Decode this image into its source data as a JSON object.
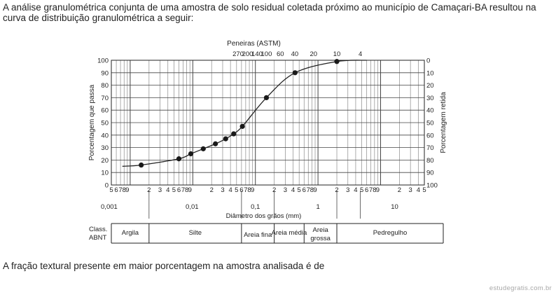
{
  "text": {
    "intro": "A análise granulométrica conjunta de uma amostra de solo residual coletada próximo ao município de Camaçari-BA resultou na curva de distribuição granulométrica a seguir:",
    "question": "A fração textural presente em maior porcentagem na amostra analisada é de",
    "watermark": "estudegratis.com.br"
  },
  "chart_data": {
    "type": "line",
    "title": "Peneiras (ASTM)",
    "sieve_labels": [
      "270",
      "200",
      "140",
      "100",
      "60",
      "40",
      "20",
      "10",
      "4"
    ],
    "xlabel": "Diâmetro dos grãos (mm)",
    "ylabel_left": "Porcentagem que passa",
    "ylabel_right": "Porcentagem retida",
    "x_scale": "log",
    "xlim": [
      0.0005,
      50
    ],
    "ylim": [
      0,
      100
    ],
    "y_ticks_left": [
      "0",
      "10",
      "20",
      "30",
      "40",
      "50",
      "60",
      "70",
      "80",
      "90",
      "100"
    ],
    "y_ticks_right": [
      "100",
      "90",
      "80",
      "70",
      "60",
      "50",
      "40",
      "30",
      "20",
      "10",
      "0"
    ],
    "decade_labels": [
      "0,001",
      "0,01",
      "0,1",
      "1",
      "10"
    ],
    "minor_tick_labels": [
      "5",
      "6",
      "7",
      "8",
      "9",
      "2",
      "3",
      "4",
      "5",
      "6",
      "7",
      "8",
      "9",
      "2",
      "3",
      "4",
      "5",
      "6",
      "7",
      "8",
      "9",
      "2",
      "3",
      "4",
      "5",
      "6",
      "7",
      "8",
      "9",
      "2",
      "3",
      "4",
      "5",
      "6",
      "7",
      "8",
      "9",
      "2",
      "3",
      "4",
      "5"
    ],
    "series": [
      {
        "points": [
          {
            "x": 0.0015,
            "y": 16
          },
          {
            "x": 0.006,
            "y": 21
          },
          {
            "x": 0.0093,
            "y": 25
          },
          {
            "x": 0.0147,
            "y": 29
          },
          {
            "x": 0.023,
            "y": 33
          },
          {
            "x": 0.0335,
            "y": 37
          },
          {
            "x": 0.045,
            "y": 41
          },
          {
            "x": 0.062,
            "y": 47
          },
          {
            "x": 0.15,
            "y": 70
          },
          {
            "x": 0.43,
            "y": 90
          },
          {
            "x": 2.0,
            "y": 99
          }
        ],
        "curve_start": {
          "x": 0.00075,
          "y": 15
        },
        "curve_end": {
          "x": 6.0,
          "y": 100
        }
      }
    ],
    "grid": true
  },
  "classification": {
    "label": "Class. ABNT",
    "classes": [
      "Argila",
      "Silte",
      "Areia fina",
      "Areia média",
      "Areia grossa",
      "Pedregulho"
    ]
  }
}
